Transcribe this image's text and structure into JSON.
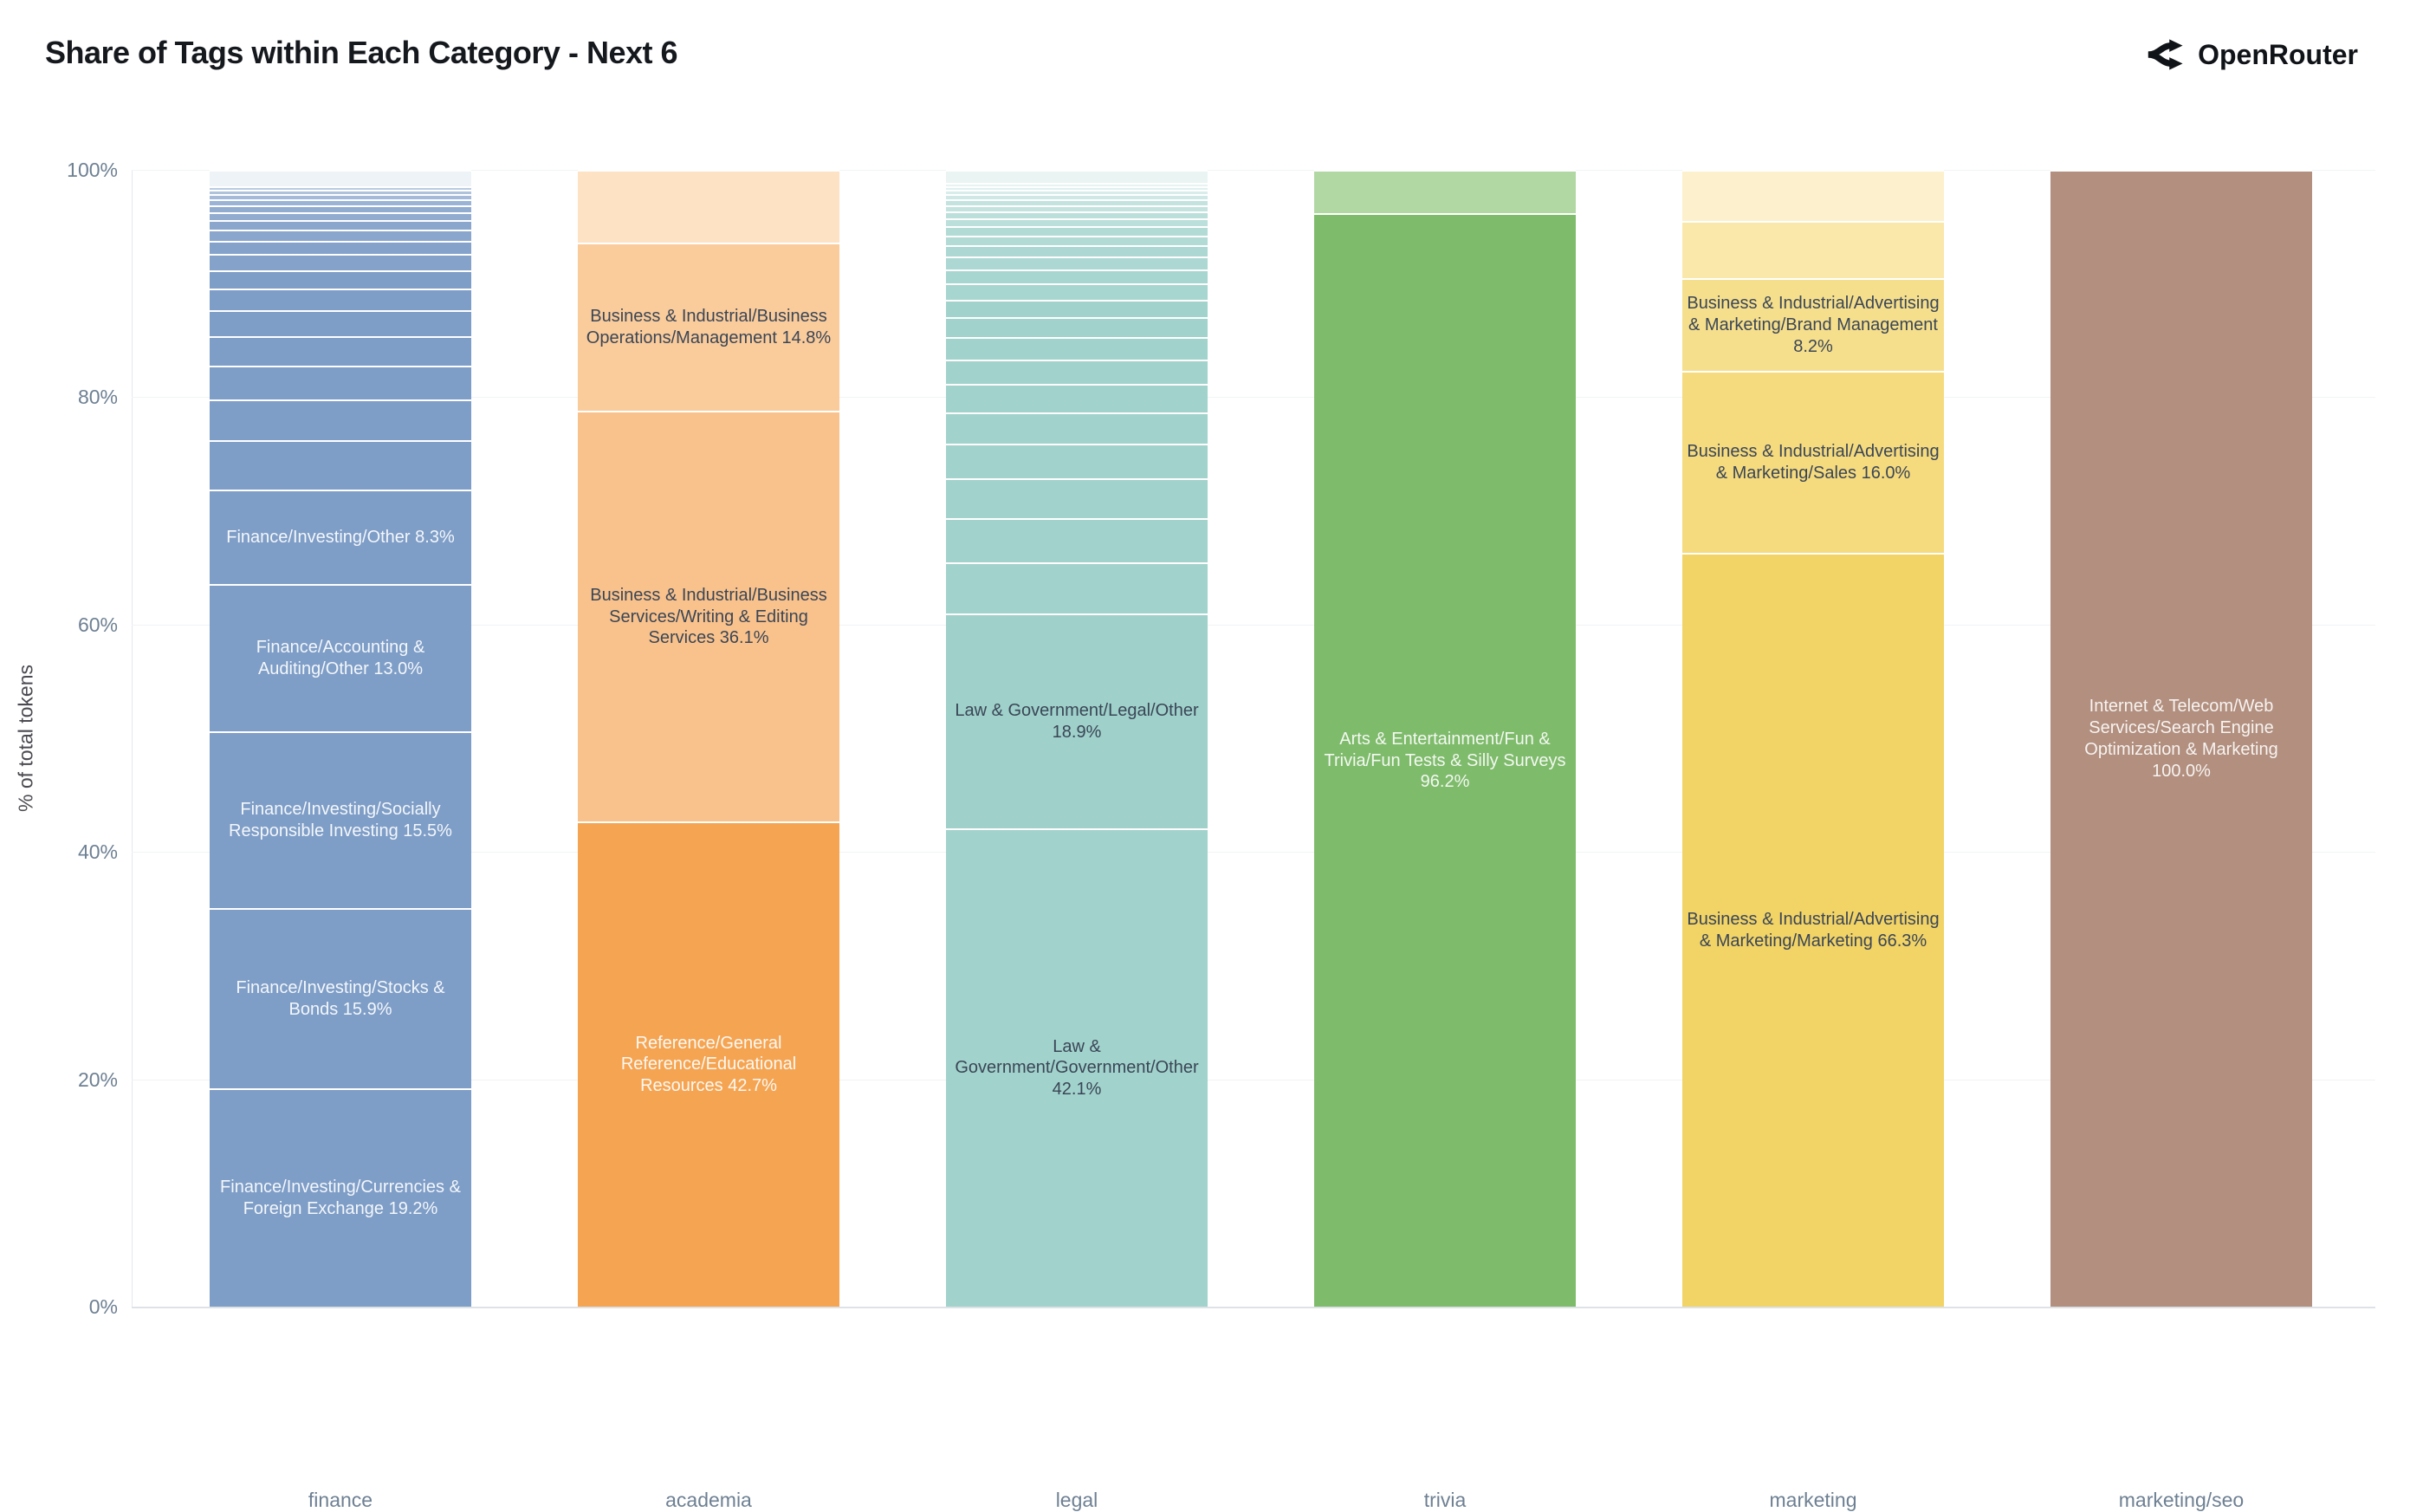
{
  "header": {
    "title": "Share of Tags within Each Category - Next 6",
    "brand": "OpenRouter"
  },
  "chart_data": {
    "type": "bar",
    "stacked": true,
    "percent_stacked": true,
    "title": "Share of Tags within Each Category - Next 6",
    "xlabel": "",
    "ylabel": "% of total tokens",
    "ylim": [
      0,
      100
    ],
    "grid": "horizontal",
    "legend": "none",
    "yticks": [
      {
        "label": "0%",
        "value": 0
      },
      {
        "label": "20%",
        "value": 20
      },
      {
        "label": "40%",
        "value": 40
      },
      {
        "label": "60%",
        "value": 60
      },
      {
        "label": "80%",
        "value": 80
      },
      {
        "label": "100%",
        "value": 100
      }
    ],
    "categories": [
      "finance",
      "academia",
      "legal",
      "trivia",
      "marketing",
      "marketing/seo"
    ],
    "bars": [
      {
        "category": "finance",
        "segments": [
          {
            "label": "Finance/Investing/Currencies & Foreign Exchange",
            "pct": 19.2,
            "color": "#7E9DC7",
            "text": "#F3F7FA"
          },
          {
            "label": "Finance/Investing/Stocks & Bonds",
            "pct": 15.9,
            "color": "#7E9DC7",
            "text": "#F3F7FA"
          },
          {
            "label": "Finance/Investing/Socially Responsible Investing",
            "pct": 15.5,
            "color": "#7E9DC7",
            "text": "#F3F7FA"
          },
          {
            "label": "Finance/Accounting & Auditing/Other",
            "pct": 13.0,
            "color": "#7E9DC7",
            "text": "#F3F7FA"
          },
          {
            "label": "Finance/Investing/Other",
            "pct": 8.3,
            "color": "#7E9DC7",
            "text": "#F3F7FA"
          },
          {
            "label": null,
            "pct": 4.3,
            "color": "#7E9DC7"
          },
          {
            "label": null,
            "pct": 3.6,
            "color": "#7E9DC7"
          },
          {
            "label": null,
            "pct": 3.0,
            "color": "#7E9DC7"
          },
          {
            "label": null,
            "pct": 2.6,
            "color": "#7E9DC7"
          },
          {
            "label": null,
            "pct": 2.25,
            "color": "#7E9DC7"
          },
          {
            "label": null,
            "pct": 1.9,
            "color": "#7E9DC7"
          },
          {
            "label": null,
            "pct": 1.65,
            "color": "#7E9DC7"
          },
          {
            "label": null,
            "pct": 1.4,
            "color": "#84A2CA"
          },
          {
            "label": null,
            "pct": 1.15,
            "color": "#84A2CA"
          },
          {
            "label": null,
            "pct": 1.0,
            "color": "#8AA6CC"
          },
          {
            "label": null,
            "pct": 0.85,
            "color": "#8AA6CC"
          },
          {
            "label": null,
            "pct": 0.7,
            "color": "#92ACD0"
          },
          {
            "label": null,
            "pct": 0.6,
            "color": "#92ACD0"
          },
          {
            "label": null,
            "pct": 0.5,
            "color": "#9BB3D4"
          },
          {
            "label": null,
            "pct": 0.45,
            "color": "#A4BAD8"
          },
          {
            "label": null,
            "pct": 0.4,
            "color": "#AFC2DC"
          },
          {
            "label": null,
            "pct": 0.35,
            "color": "#BACBE1"
          },
          {
            "label": null,
            "pct": 1.4,
            "color": "#EDF3F7"
          }
        ]
      },
      {
        "category": "academia",
        "segments": [
          {
            "label": "Reference/General Reference/Educational Resources",
            "pct": 42.7,
            "color": "#F5A452",
            "text": "#FDF8F2"
          },
          {
            "label": "Business & Industrial/Business Services/Writing & Editing Services",
            "pct": 36.1,
            "color": "#F9C28C",
            "text": "#3A4656"
          },
          {
            "label": "Business & Industrial/Business Operations/Management",
            "pct": 14.8,
            "color": "#FACB9B",
            "text": "#3A4656"
          },
          {
            "label": null,
            "pct": 6.4,
            "color": "#FDE2C3"
          }
        ]
      },
      {
        "category": "legal",
        "segments": [
          {
            "label": "Law & Government/Government/Other",
            "pct": 42.1,
            "color": "#A2D2CC",
            "text": "#3A4656"
          },
          {
            "label": "Law & Government/Legal/Other",
            "pct": 18.9,
            "color": "#9FD0CA",
            "text": "#3A4656"
          },
          {
            "label": null,
            "pct": 4.45,
            "color": "#A2D2CC"
          },
          {
            "label": null,
            "pct": 3.9,
            "color": "#A2D2CC"
          },
          {
            "label": null,
            "pct": 3.5,
            "color": "#A2D2CC"
          },
          {
            "label": null,
            "pct": 3.1,
            "color": "#A2D2CC"
          },
          {
            "label": null,
            "pct": 2.75,
            "color": "#A2D2CC"
          },
          {
            "label": null,
            "pct": 2.45,
            "color": "#A2D2CC"
          },
          {
            "label": null,
            "pct": 2.2,
            "color": "#A2D2CC"
          },
          {
            "label": null,
            "pct": 1.95,
            "color": "#A2D2CC"
          },
          {
            "label": null,
            "pct": 1.75,
            "color": "#A2D2CC"
          },
          {
            "label": null,
            "pct": 1.55,
            "color": "#A2D2CC"
          },
          {
            "label": null,
            "pct": 1.4,
            "color": "#A7D5CF"
          },
          {
            "label": null,
            "pct": 1.25,
            "color": "#A7D5CF"
          },
          {
            "label": null,
            "pct": 1.1,
            "color": "#ACD7D2"
          },
          {
            "label": null,
            "pct": 1.0,
            "color": "#ACD7D2"
          },
          {
            "label": null,
            "pct": 0.9,
            "color": "#B3DBD6"
          },
          {
            "label": null,
            "pct": 0.8,
            "color": "#B3DBD6"
          },
          {
            "label": null,
            "pct": 0.7,
            "color": "#BBDFDA"
          },
          {
            "label": null,
            "pct": 0.6,
            "color": "#BBDFDA"
          },
          {
            "label": null,
            "pct": 0.55,
            "color": "#C4E3DF"
          },
          {
            "label": null,
            "pct": 0.5,
            "color": "#C4E3DF"
          },
          {
            "label": null,
            "pct": 0.45,
            "color": "#CFE8E5"
          },
          {
            "label": null,
            "pct": 0.4,
            "color": "#D8EDEA"
          },
          {
            "label": null,
            "pct": 0.35,
            "color": "#E0F0EE"
          },
          {
            "label": null,
            "pct": 0.3,
            "color": "#E6F3F1"
          },
          {
            "label": null,
            "pct": 1.1,
            "color": "#EAF4F2"
          }
        ]
      },
      {
        "category": "trivia",
        "segments": [
          {
            "label": "Arts & Entertainment/Fun & Trivia/Fun Tests & Silly Surveys",
            "pct": 96.2,
            "color": "#7EBB6B",
            "text": "#F3F8F1"
          },
          {
            "label": null,
            "pct": 3.8,
            "color": "#B1D8A3"
          }
        ]
      },
      {
        "category": "marketing",
        "segments": [
          {
            "label": "Business & Industrial/Advertising & Marketing/Marketing",
            "pct": 66.3,
            "color": "#F2D366",
            "text": "#3A4656"
          },
          {
            "label": "Business & Industrial/Advertising & Marketing/Sales",
            "pct": 16.0,
            "color": "#F5DA7E",
            "text": "#3A4656"
          },
          {
            "label": "Business & Industrial/Advertising & Marketing/Brand Management",
            "pct": 8.2,
            "color": "#F6DF8C",
            "text": "#3A4656"
          },
          {
            "label": null,
            "pct": 5.0,
            "color": "#F9E8A9"
          },
          {
            "label": null,
            "pct": 4.5,
            "color": "#FCF1CC"
          }
        ]
      },
      {
        "category": "marketing/seo",
        "segments": [
          {
            "label": "Internet & Telecom/Web Services/Search Engine Optimization & Marketing",
            "pct": 100.0,
            "color": "#B28F7E",
            "text": "#F7F3F1"
          }
        ]
      }
    ]
  }
}
